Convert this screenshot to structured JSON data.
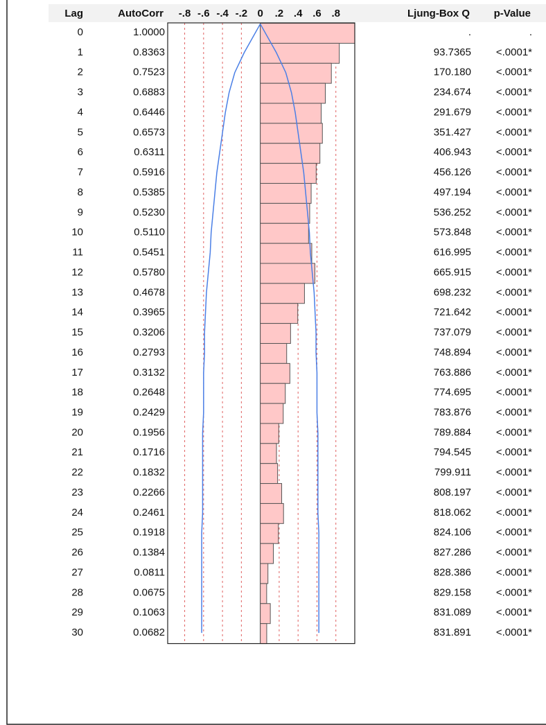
{
  "chart_data": {
    "type": "bar",
    "headers": [
      "Lag",
      "AutoCorr",
      "Ljung-Box Q",
      "p-Value"
    ],
    "categories": [
      "0",
      "1",
      "2",
      "3",
      "4",
      "5",
      "6",
      "7",
      "8",
      "9",
      "10",
      "11",
      "12",
      "13",
      "14",
      "15",
      "16",
      "17",
      "18",
      "19",
      "20",
      "21",
      "22",
      "23",
      "24",
      "25",
      "26",
      "27",
      "28",
      "29",
      "30"
    ],
    "values": [
      1.0,
      0.8363,
      0.7523,
      0.6883,
      0.6446,
      0.6573,
      0.6311,
      0.5916,
      0.5385,
      0.523,
      0.511,
      0.5451,
      0.578,
      0.4678,
      0.3965,
      0.3206,
      0.2793,
      0.3132,
      0.2648,
      0.2429,
      0.1956,
      0.1716,
      0.1832,
      0.2266,
      0.2461,
      0.1918,
      0.1384,
      0.0811,
      0.0675,
      0.1063,
      0.0682
    ],
    "value_labels": [
      "1.0000",
      "0.8363",
      "0.7523",
      "0.6883",
      "0.6446",
      "0.6573",
      "0.6311",
      "0.5916",
      "0.5385",
      "0.5230",
      "0.5110",
      "0.5451",
      "0.5780",
      "0.4678",
      "0.3965",
      "0.3206",
      "0.2793",
      "0.3132",
      "0.2648",
      "0.2429",
      "0.1956",
      "0.1716",
      "0.1832",
      "0.2266",
      "0.2461",
      "0.1918",
      "0.1384",
      "0.0811",
      "0.0675",
      "0.1063",
      "0.0682"
    ],
    "ljung_box_q": [
      ".",
      "93.7365",
      "170.180",
      "234.674",
      "291.679",
      "351.427",
      "406.943",
      "456.126",
      "497.194",
      "536.252",
      "573.848",
      "616.995",
      "665.915",
      "698.232",
      "721.642",
      "737.079",
      "748.894",
      "763.886",
      "774.695",
      "783.876",
      "789.884",
      "794.545",
      "799.911",
      "808.197",
      "818.062",
      "824.106",
      "827.286",
      "828.386",
      "829.158",
      "831.089",
      "831.891"
    ],
    "p_values": [
      ".",
      "<.0001*",
      "<.0001*",
      "<.0001*",
      "<.0001*",
      "<.0001*",
      "<.0001*",
      "<.0001*",
      "<.0001*",
      "<.0001*",
      "<.0001*",
      "<.0001*",
      "<.0001*",
      "<.0001*",
      "<.0001*",
      "<.0001*",
      "<.0001*",
      "<.0001*",
      "<.0001*",
      "<.0001*",
      "<.0001*",
      "<.0001*",
      "<.0001*",
      "<.0001*",
      "<.0001*",
      "<.0001*",
      "<.0001*",
      "<.0001*",
      "<.0001*",
      "<.0001*",
      "<.0001*"
    ],
    "bounds": [
      0,
      0.17,
      0.27,
      0.33,
      0.37,
      0.4,
      0.43,
      0.46,
      0.48,
      0.5,
      0.52,
      0.53,
      0.55,
      0.57,
      0.58,
      0.59,
      0.59,
      0.6,
      0.6,
      0.6,
      0.61,
      0.61,
      0.61,
      0.61,
      0.61,
      0.62,
      0.62,
      0.62,
      0.62,
      0.62,
      0.62
    ],
    "bound_color": "#4a7fe6",
    "color": "#ffc8c8",
    "xlim": [
      -0.98,
      1.0
    ],
    "xticks": [
      {
        "value": -0.8,
        "label": "-.8"
      },
      {
        "value": -0.6,
        "label": "-.6"
      },
      {
        "value": -0.4,
        "label": "-.4"
      },
      {
        "value": -0.2,
        "label": "-.2"
      },
      0,
      {
        "value": 0.2,
        "label": ".2"
      },
      {
        "value": 0.4,
        "label": ".4"
      },
      {
        "value": 0.6,
        "label": ".6"
      },
      {
        "value": 0.8,
        "label": ".8"
      }
    ],
    "grid": true
  }
}
